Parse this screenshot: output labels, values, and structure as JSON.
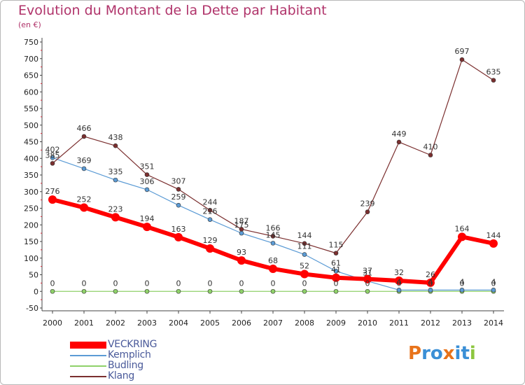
{
  "title": "Evolution du Montant de la Dette par Habitant",
  "subtitle": "(en €)",
  "logo": {
    "text": "Proxiti",
    "colors": [
      "#e8731a",
      "#3a8fd6",
      "#3a8fd6",
      "#e8731a",
      "#3a8fd6",
      "#3a8fd6",
      "#8dc63f"
    ]
  },
  "chart_data": {
    "type": "line",
    "title": "Evolution du Montant de la Dette par Habitant",
    "ylabel": "(en €)",
    "xlabel": "",
    "ylim": [
      -50,
      750
    ],
    "yticks": [
      -50,
      0,
      50,
      100,
      150,
      200,
      250,
      300,
      350,
      400,
      450,
      500,
      550,
      600,
      650,
      700,
      750
    ],
    "x": [
      "2000",
      "2001",
      "2002",
      "2003",
      "2004",
      "2005",
      "2006",
      "2007",
      "2008",
      "2009",
      "2010",
      "2011",
      "2012",
      "2013",
      "2014"
    ],
    "grid": false,
    "legend_position": "bottom-left",
    "series": [
      {
        "name": "VECKRING",
        "color": "#ff0000",
        "width": 6,
        "values": [
          276,
          252,
          223,
          194,
          163,
          129,
          93,
          68,
          52,
          41,
          37,
          32,
          26,
          164,
          144
        ],
        "labels": [
          "276",
          "252",
          "223",
          "194",
          "163",
          "129",
          "93",
          "68",
          "52",
          "41",
          "37",
          "32",
          "26",
          "164",
          "144"
        ]
      },
      {
        "name": "Kemplich",
        "color": "#5b9bd5",
        "width": 1.2,
        "values": [
          402,
          369,
          335,
          306,
          259,
          216,
          175,
          145,
          111,
          61,
          31,
          4,
          4,
          4,
          4
        ],
        "labels": [
          "402",
          "369",
          "335",
          "306",
          "259",
          "216",
          "175",
          "145",
          "111",
          "61",
          "31",
          "4",
          "4",
          "4",
          "4"
        ]
      },
      {
        "name": "Budling",
        "color": "#8fd16a",
        "width": 1.2,
        "values": [
          0,
          0,
          0,
          0,
          0,
          0,
          0,
          0,
          0,
          0,
          0,
          0,
          0,
          0,
          0
        ],
        "labels": [
          "0",
          "0",
          "0",
          "0",
          "0",
          "0",
          "0",
          "0",
          "0",
          "0",
          "0",
          "0",
          "0",
          "0",
          "0"
        ]
      },
      {
        "name": "Klang",
        "color": "#7b2f2f",
        "width": 1.2,
        "values": [
          385,
          466,
          438,
          351,
          307,
          244,
          187,
          166,
          144,
          115,
          239,
          449,
          410,
          697,
          635
        ],
        "labels": [
          "385",
          "466",
          "438",
          "351",
          "307",
          "244",
          "187",
          "166",
          "144",
          "115",
          "239",
          "449",
          "410",
          "697",
          "635"
        ]
      }
    ]
  }
}
